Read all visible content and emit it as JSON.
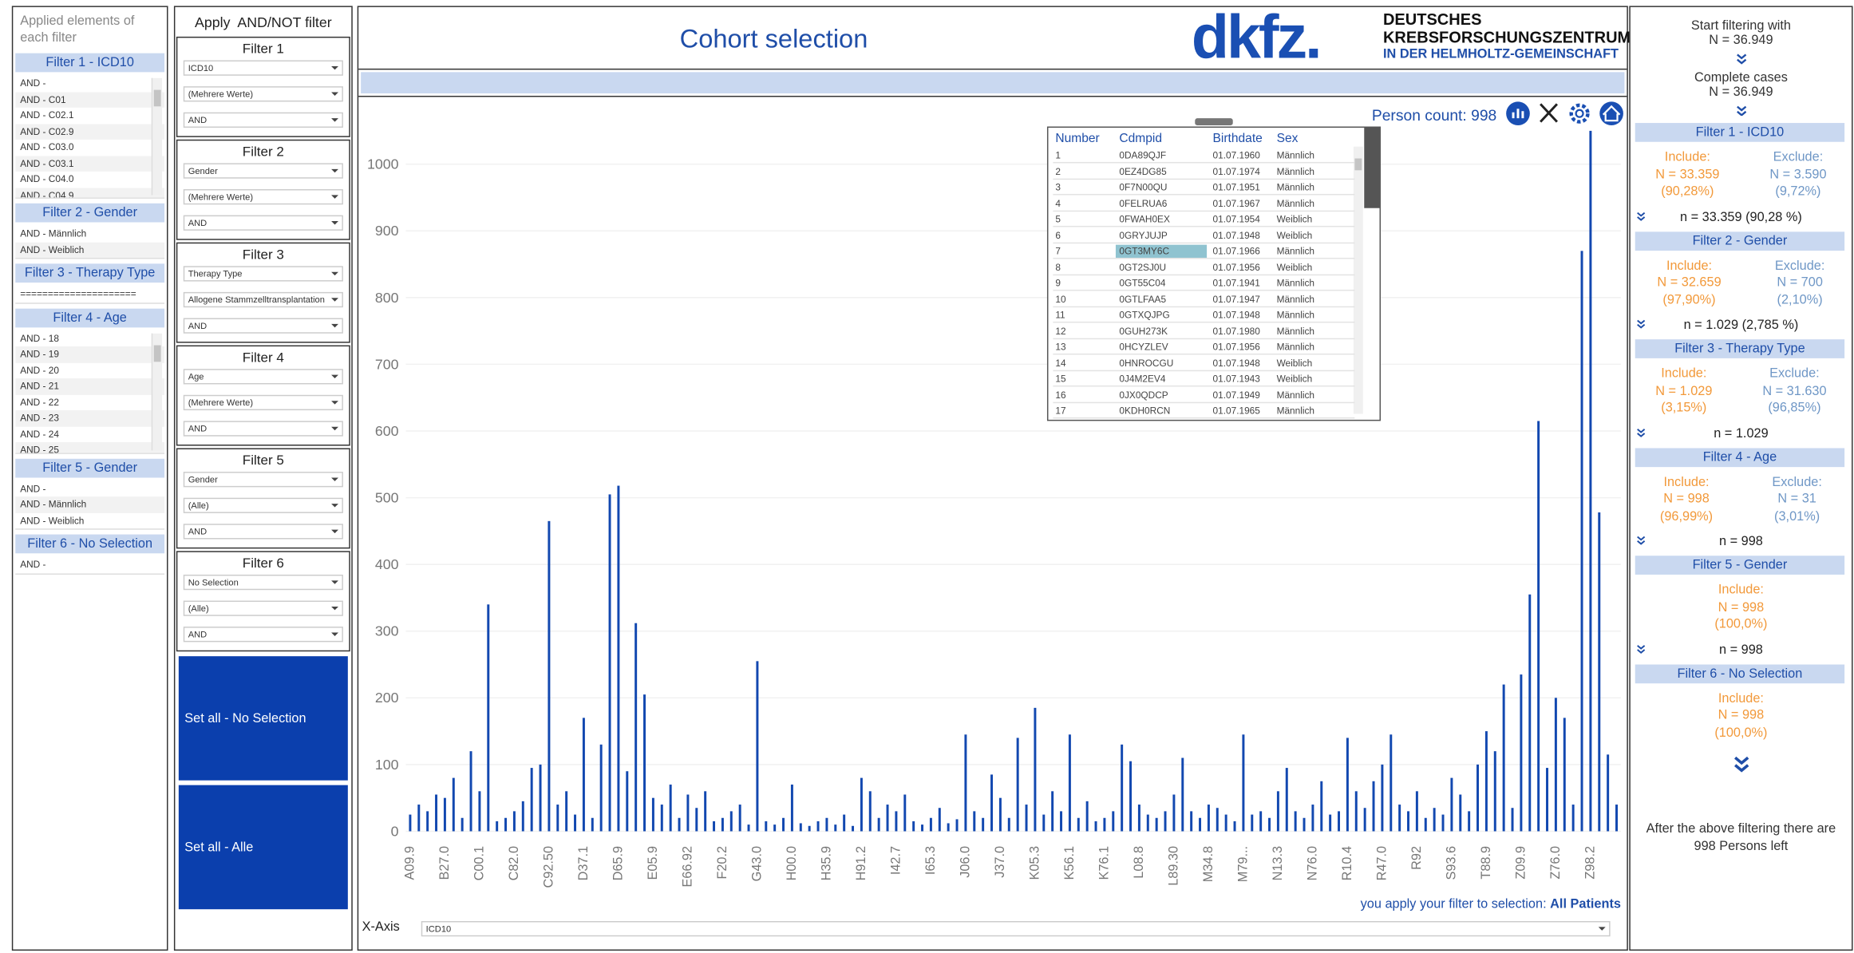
{
  "left_panel": {
    "title": "Applied elements of each filter",
    "groups": [
      {
        "header": "Filter 1 - ICD10",
        "items": [
          "AND -",
          "AND - C01",
          "AND - C02.1",
          "AND - C02.9",
          "AND - C03.0",
          "AND - C03.1",
          "AND - C04.0",
          "AND - C04.9"
        ]
      },
      {
        "header": "Filter 2 - Gender",
        "items": [
          "AND - Männlich",
          "AND - Weiblich"
        ]
      },
      {
        "header": "Filter 3 - Therapy Type",
        "items": [
          "====================="
        ]
      },
      {
        "header": "Filter 4 - Age",
        "items": [
          "AND - 18",
          "AND - 19",
          "AND - 20",
          "AND - 21",
          "AND - 22",
          "AND - 23",
          "AND - 24",
          "AND - 25"
        ]
      },
      {
        "header": "Filter 5 - Gender",
        "items": [
          "AND -",
          "AND - Männlich",
          "AND - Weiblich"
        ]
      },
      {
        "header": "Filter 6 - No Selection",
        "items": [
          "AND -"
        ]
      }
    ]
  },
  "filter_panel": {
    "title": "Apply  AND/NOT filter",
    "filters": [
      {
        "label": "Filter 1",
        "fields": [
          "ICD10",
          "(Mehrere Werte)",
          "AND"
        ]
      },
      {
        "label": "Filter 2",
        "fields": [
          "Gender",
          "(Mehrere Werte)",
          "AND"
        ]
      },
      {
        "label": "Filter 3",
        "fields": [
          "Therapy Type",
          "Allogene Stammzelltransplantation",
          "AND"
        ]
      },
      {
        "label": "Filter 4",
        "fields": [
          "Age",
          "(Mehrere Werte)",
          "AND"
        ]
      },
      {
        "label": "Filter 5",
        "fields": [
          "Gender",
          "(Alle)",
          "AND"
        ]
      },
      {
        "label": "Filter 6",
        "fields": [
          "No Selection",
          "(Alle)",
          "AND"
        ]
      }
    ],
    "buttons": [
      "Set all - No Selection",
      "Set all - Alle"
    ]
  },
  "header": {
    "title": "Cohort selection",
    "logo_main": "dkfz.",
    "logo_lines": [
      "DEUTSCHES",
      "KREBSFORSCHUNGSZENTRUM",
      "IN DER HELMHOLTZ-GEMEINSCHAFT"
    ]
  },
  "person_count": "Person count: 998",
  "table": {
    "columns": [
      "Number",
      "Cdmpid",
      "Birthdate",
      "Sex"
    ],
    "rows": [
      [
        "1",
        "0DA89QJF",
        "01.07.1960",
        "Männlich"
      ],
      [
        "2",
        "0EZ4DG85",
        "01.07.1974",
        "Männlich"
      ],
      [
        "3",
        "0F7N00QU",
        "01.07.1951",
        "Männlich"
      ],
      [
        "4",
        "0FELRUA6",
        "01.07.1967",
        "Männlich"
      ],
      [
        "5",
        "0FWAH0EX",
        "01.07.1954",
        "Weiblich"
      ],
      [
        "6",
        "0GRYJUJP",
        "01.07.1948",
        "Weiblich"
      ],
      [
        "7",
        "0GT3MY6C",
        "01.07.1966",
        "Männlich"
      ],
      [
        "8",
        "0GT2SJ0U",
        "01.07.1956",
        "Weiblich"
      ],
      [
        "9",
        "0GT55C04",
        "01.07.1941",
        "Männlich"
      ],
      [
        "10",
        "0GTLFAA5",
        "01.07.1947",
        "Männlich"
      ],
      [
        "11",
        "0GTXQJPG",
        "01.07.1948",
        "Männlich"
      ],
      [
        "12",
        "0GUH273K",
        "01.07.1980",
        "Männlich"
      ],
      [
        "13",
        "0HCYZLEV",
        "01.07.1956",
        "Männlich"
      ],
      [
        "14",
        "0HNROCGU",
        "01.07.1948",
        "Weiblich"
      ],
      [
        "15",
        "0J4M2EV4",
        "01.07.1943",
        "Weiblich"
      ],
      [
        "16",
        "0JX0QDCP",
        "01.07.1949",
        "Männlich"
      ],
      [
        "17",
        "0KDH0RCN",
        "01.07.1965",
        "Männlich"
      ]
    ],
    "selected_row": 6
  },
  "chart_data": {
    "type": "bar",
    "color": "#1248b0",
    "grid": true,
    "ylim": [
      -15,
      1060
    ],
    "yticks": [
      0,
      100,
      200,
      300,
      400,
      500,
      600,
      700,
      800,
      900,
      1000
    ],
    "categories": [
      "A09.9",
      null,
      null,
      null,
      "B27.0",
      null,
      null,
      null,
      "C00.1",
      null,
      null,
      null,
      "C82.0",
      null,
      null,
      null,
      "C92.50",
      null,
      null,
      null,
      "D37.1",
      null,
      null,
      null,
      "D65.9",
      null,
      null,
      null,
      "E05.9",
      null,
      null,
      null,
      "E66.92",
      null,
      null,
      null,
      "F20.2",
      null,
      null,
      null,
      "G43.0",
      null,
      null,
      null,
      "H00.0",
      null,
      null,
      null,
      "H35.9",
      null,
      null,
      null,
      "H91.2",
      null,
      null,
      null,
      "I42.7",
      null,
      null,
      null,
      "I65.3",
      null,
      null,
      null,
      "J06.0",
      null,
      null,
      null,
      "J37.0",
      null,
      null,
      null,
      "K05.3",
      null,
      null,
      null,
      "K56.1",
      null,
      null,
      null,
      "K76.1",
      null,
      null,
      null,
      "L08.8",
      null,
      null,
      null,
      "L89.30",
      null,
      null,
      null,
      "M34.8",
      null,
      null,
      null,
      "M79...",
      null,
      null,
      null,
      "N13.3",
      null,
      null,
      null,
      "N76.0",
      null,
      null,
      null,
      "R10.4",
      null,
      null,
      null,
      "R47.0",
      null,
      null,
      null,
      "R92",
      null,
      null,
      null,
      "S93.6",
      null,
      null,
      null,
      "T88.9",
      null,
      null,
      null,
      "Z09.9",
      null,
      null,
      null,
      "Z76.0",
      null,
      null,
      null,
      "Z98.2",
      null,
      null,
      null
    ],
    "values": [
      25,
      40,
      30,
      55,
      50,
      80,
      20,
      120,
      60,
      340,
      15,
      20,
      30,
      45,
      95,
      100,
      465,
      40,
      60,
      25,
      170,
      20,
      130,
      505,
      518,
      90,
      312,
      205,
      50,
      40,
      70,
      20,
      55,
      35,
      60,
      15,
      20,
      30,
      40,
      10,
      255,
      15,
      10,
      20,
      70,
      12,
      8,
      15,
      20,
      10,
      25,
      8,
      80,
      60,
      20,
      40,
      30,
      55,
      15,
      10,
      20,
      35,
      12,
      18,
      145,
      30,
      20,
      85,
      50,
      20,
      140,
      40,
      185,
      25,
      60,
      30,
      145,
      20,
      45,
      15,
      20,
      30,
      130,
      105,
      40,
      25,
      20,
      30,
      55,
      110,
      30,
      20,
      40,
      35,
      25,
      15,
      145,
      25,
      30,
      20,
      60,
      95,
      30,
      20,
      40,
      75,
      25,
      30,
      140,
      60,
      35,
      75,
      100,
      145,
      40,
      30,
      60,
      20,
      35,
      25,
      80,
      55,
      30,
      100,
      150,
      120,
      220,
      35,
      235,
      355,
      615,
      95,
      200,
      170,
      40,
      870,
      1050,
      478,
      115,
      40
    ]
  },
  "footer": {
    "note": "you apply your filter to selection:",
    "selection": "All Patients",
    "x_axis_label": "X-Axis",
    "x_axis_value": "ICD10"
  },
  "right_panel": {
    "start_label": "Start filtering with",
    "start_n": "N = 36.949",
    "complete_label": "Complete cases",
    "complete_n": "N = 36.949",
    "filters": [
      {
        "header": "Filter 1 - ICD10",
        "include_label": "Include:",
        "include_n": "N = 33.359",
        "include_pct": "(90,28%)",
        "exclude_label": "Exclude:",
        "exclude_n": "N = 3.590",
        "exclude_pct": "(9,72%)",
        "summary": "n = 33.359 (90,28 %)"
      },
      {
        "header": "Filter 2 - Gender",
        "include_label": "Include:",
        "include_n": "N = 32.659",
        "include_pct": "(97,90%)",
        "exclude_label": "Exclude:",
        "exclude_n": "N = 700",
        "exclude_pct": "(2,10%)",
        "summary": "n = 1.029 (2,785 %)"
      },
      {
        "header": "Filter 3 - Therapy Type",
        "include_label": "Include:",
        "include_n": "N = 1.029",
        "include_pct": "(3,15%)",
        "exclude_label": "Exclude:",
        "exclude_n": "N = 31.630",
        "exclude_pct": "(96,85%)",
        "summary": "n = 1.029"
      },
      {
        "header": "Filter 4 - Age",
        "include_label": "Include:",
        "include_n": "N = 998",
        "include_pct": "(96,99%)",
        "exclude_label": "Exclude:",
        "exclude_n": "N = 31",
        "exclude_pct": "(3,01%)",
        "summary": "n = 998"
      },
      {
        "header": "Filter 5 - Gender",
        "include_label": "Include:",
        "include_n": "N = 998",
        "include_pct": "(100,0%)",
        "summary": "n = 998"
      },
      {
        "header": "Filter 6 - No Selection",
        "include_label": "Include:",
        "include_n": "N = 998",
        "include_pct": "(100,0%)"
      }
    ],
    "final_text": "After the above filtering there are  998 Persons left"
  }
}
